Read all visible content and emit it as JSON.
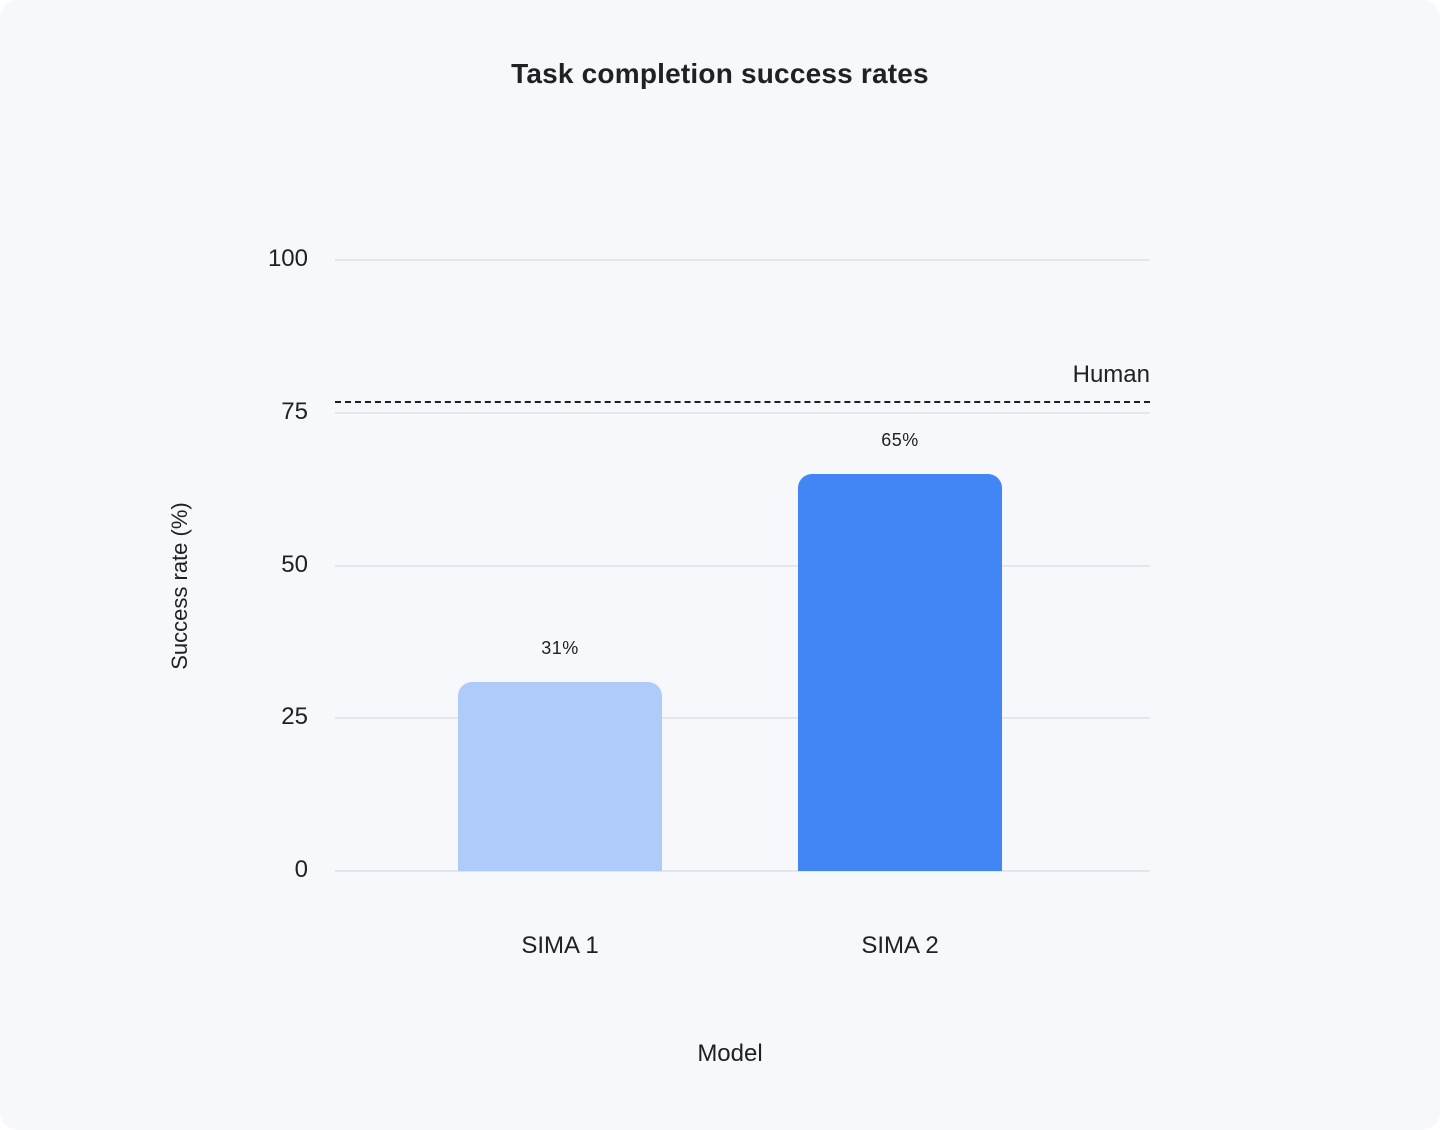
{
  "chart_data": {
    "type": "bar",
    "title": "Task completion success rates",
    "xlabel": "Model",
    "ylabel": "Success rate (%)",
    "categories": [
      "SIMA 1",
      "SIMA 2"
    ],
    "values": [
      31,
      65
    ],
    "bar_labels": [
      "31%",
      "65%"
    ],
    "yticks": [
      0,
      25,
      50,
      75,
      100
    ],
    "ylim": [
      0,
      100
    ],
    "grid": true,
    "legend_position": "none",
    "reference_line": {
      "label": "Human",
      "value": 77
    }
  },
  "colors": {
    "series": [
      "#AECBFA",
      "#4285F4"
    ],
    "panel_background": "#F7F8FC",
    "outer_background": "#FFFFFF",
    "gridline": "#E4E6EC",
    "text": "#202124",
    "reference_line": "#202124"
  }
}
